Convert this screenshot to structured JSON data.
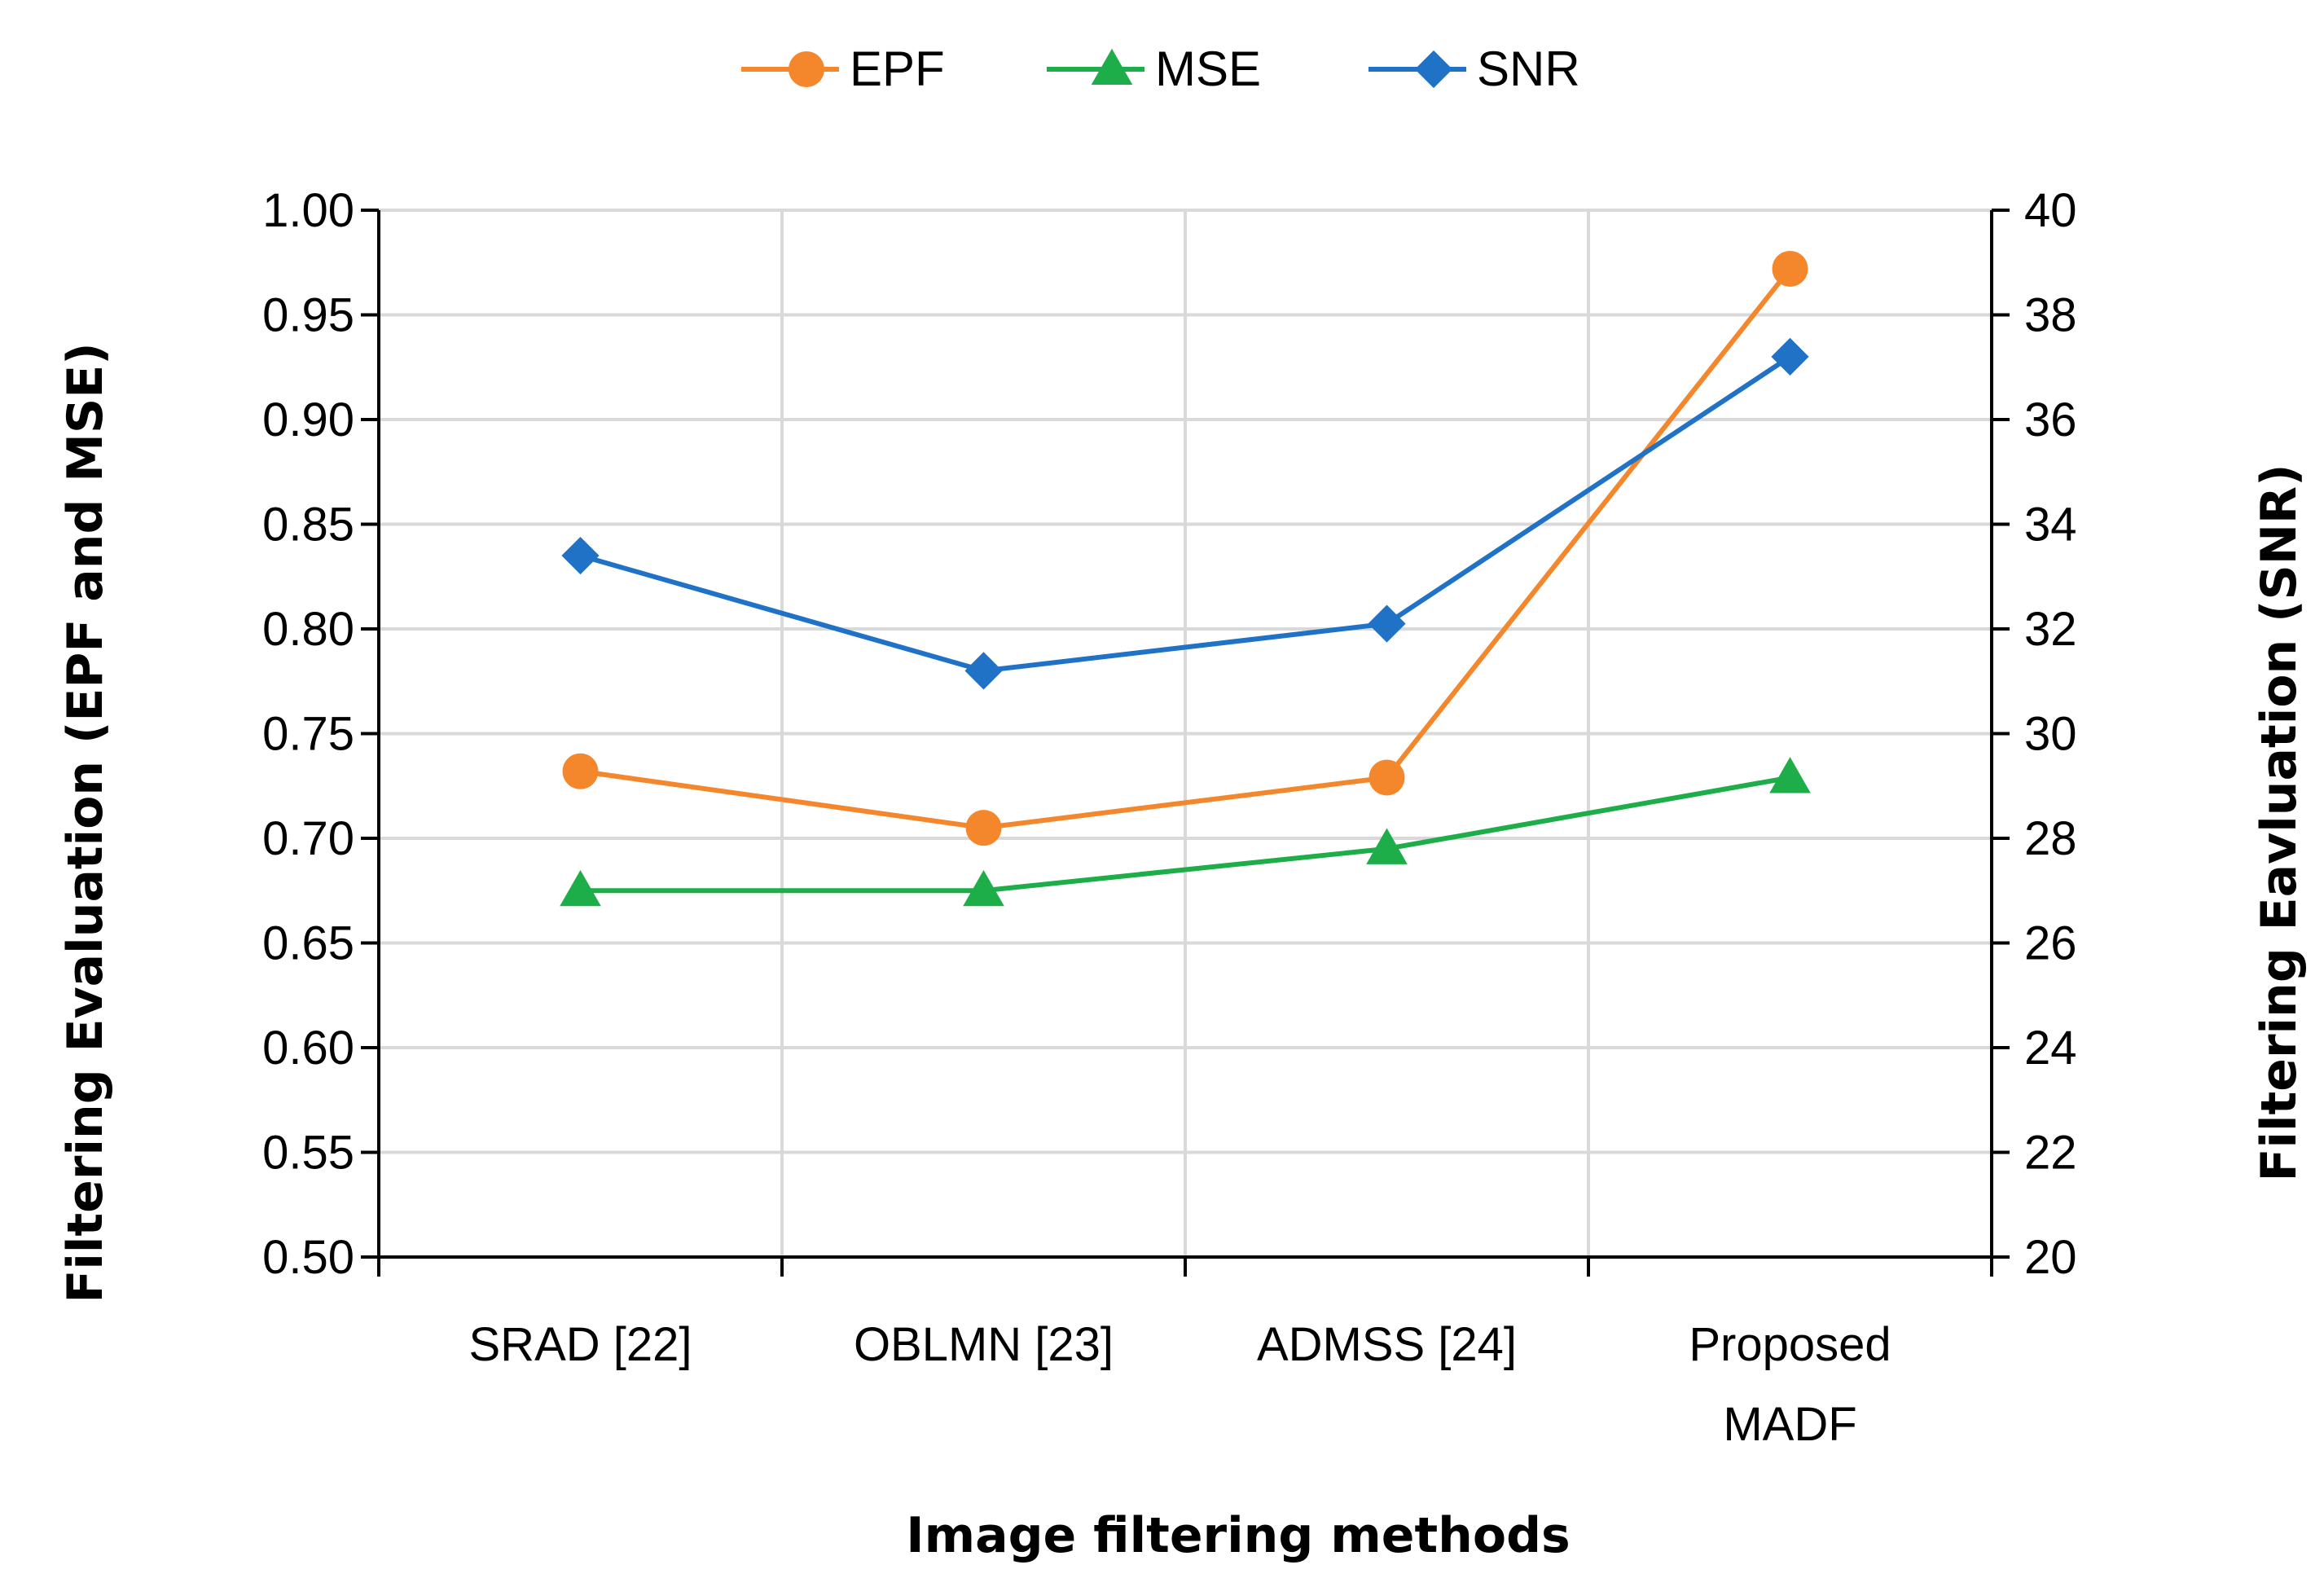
{
  "chart_data": {
    "type": "line",
    "categories": [
      "SRAD [22]",
      "OBLMN [23]",
      "ADMSS [24]",
      "Proposed MADF"
    ],
    "category_lines": [
      [
        "SRAD [22]"
      ],
      [
        "OBLMN [23]"
      ],
      [
        "ADMSS [24]"
      ],
      [
        "Proposed",
        "MADF"
      ]
    ],
    "series": [
      {
        "name": "EPF",
        "axis": "left",
        "color": "#F4862C",
        "marker": "circle",
        "values": [
          0.732,
          0.705,
          0.729,
          0.972
        ]
      },
      {
        "name": "MSE",
        "axis": "left",
        "color": "#1DAE4A",
        "marker": "triangle",
        "values": [
          0.675,
          0.675,
          0.695,
          0.729
        ]
      },
      {
        "name": "SNR",
        "axis": "right",
        "color": "#1F72C6",
        "marker": "diamond",
        "values": [
          33.4,
          31.2,
          32.1,
          37.2
        ]
      }
    ],
    "xlabel": "Image filtering methods",
    "ylabel_left": "Filtering Evaluation (EPF and MSE)",
    "ylabel_right": "Filtering Eavluation (SNR)",
    "ylim_left": [
      0.5,
      1.0
    ],
    "ylim_right": [
      20,
      40
    ],
    "yticks_left": [
      "0.50",
      "0.55",
      "0.60",
      "0.65",
      "0.70",
      "0.75",
      "0.80",
      "0.85",
      "0.90",
      "0.95",
      "1.00"
    ],
    "yticks_right": [
      "20",
      "22",
      "24",
      "26",
      "28",
      "30",
      "32",
      "34",
      "36",
      "38",
      "40"
    ],
    "grid": true,
    "legend_position": "top-center",
    "gridline_color": "#D9D9D9"
  }
}
